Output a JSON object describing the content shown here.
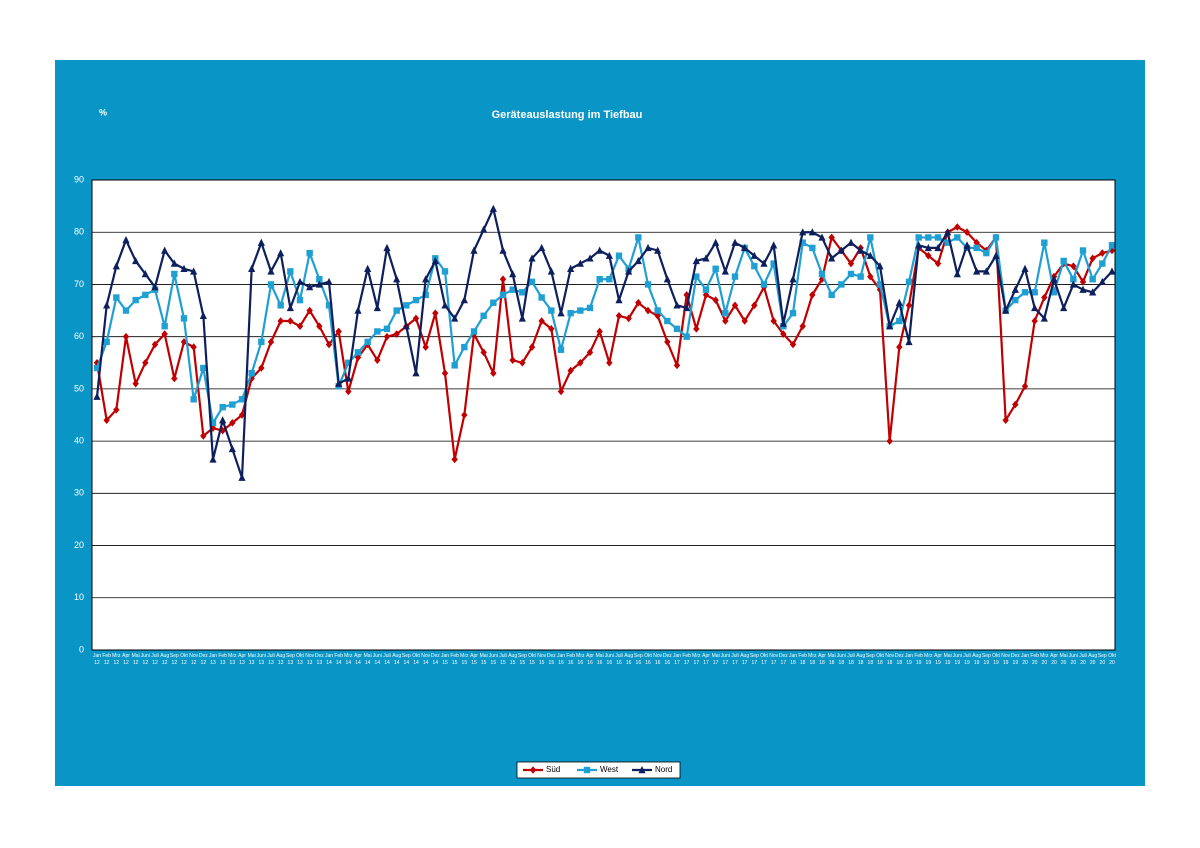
{
  "chart_data": {
    "type": "line",
    "title": "Geräteauslastung im Tiefbau",
    "y_label": "%",
    "categories": [
      "Jan 12",
      "Feb 12",
      "Mrz 12",
      "Apr 12",
      "Mai 12",
      "Juni 12",
      "Juli 12",
      "Aug 12",
      "Sep 12",
      "Okt 12",
      "Nov 12",
      "Dez 12",
      "Jan 13",
      "Feb 13",
      "Mrz 13",
      "Apr 13",
      "Mai 13",
      "Juni 13",
      "Juli 13",
      "Aug 13",
      "Sep 13",
      "Okt 13",
      "Nov 13",
      "Dez 13",
      "Jan 14",
      "Feb 14",
      "Mrz 14",
      "Apr 14",
      "Mai 14",
      "Juni 14",
      "Juli 14",
      "Aug 14",
      "Sep 14",
      "Okt 14",
      "Nov 14",
      "Dez 14",
      "Jan 15",
      "Feb 15",
      "Mrz 15",
      "Apr 15",
      "Mai 15",
      "Juni 15",
      "Juli 15",
      "Aug 15",
      "Sep 15",
      "Okt 15",
      "Nov 15",
      "Dez 15",
      "Jan 16",
      "Feb 16",
      "Mrz 16",
      "Apr 16",
      "Mai 16",
      "Juni 16",
      "Juli 16",
      "Aug 16",
      "Sep 16",
      "Okt 16",
      "Nov 16",
      "Dez 16",
      "Jan 17",
      "Feb 17",
      "Mrz 17",
      "Apr 17",
      "Mai 17",
      "Juni 17",
      "Juli 17",
      "Aug 17",
      "Sep 17",
      "Okt 17",
      "Nov 17",
      "Dez 17",
      "Jan 18",
      "Feb 18",
      "Mrz 18",
      "Apr 18",
      "Mai 18",
      "Juni 18",
      "Juli 18",
      "Aug 18",
      "Sep 18",
      "Okt 18",
      "Nov 18",
      "Dez 18",
      "Jan 19",
      "Feb 19",
      "Mrz 19",
      "Apr 19",
      "Mai 19",
      "Juni 19",
      "Juli 19",
      "Aug 19",
      "Sep 19",
      "Okt 19",
      "Nov 19",
      "Dez 19",
      "Jan 20",
      "Feb 20",
      "Mrz 20",
      "Apr 20",
      "Mai 20",
      "Juni 20",
      "Juli 20",
      "Aug 20",
      "Sep 20",
      "Okt 20"
    ],
    "series": [
      {
        "name": "Süd",
        "color": "#c00000",
        "marker": "diamond",
        "values": [
          55,
          44,
          46,
          60,
          51,
          55,
          58.5,
          60.5,
          52,
          59,
          58,
          41,
          42.5,
          42,
          43.5,
          45,
          52,
          54,
          59,
          63,
          63,
          62,
          65,
          62,
          58.5,
          61,
          49.5,
          56,
          58.5,
          55.5,
          60,
          60.5,
          62,
          63.5,
          58,
          64.5,
          53,
          36.5,
          45,
          60.5,
          57,
          53,
          71,
          55.5,
          55,
          58,
          63,
          61.5,
          49.5,
          53.5,
          55,
          57,
          61,
          55,
          64,
          63.5,
          66.5,
          65,
          64,
          59,
          54.5,
          68,
          61.5,
          68,
          67,
          63,
          66,
          63,
          66,
          69.5,
          63,
          60.5,
          58.5,
          62,
          68,
          71,
          79,
          76.5,
          74,
          77,
          71.5,
          69,
          40,
          58,
          66,
          77,
          75.5,
          74,
          80,
          81,
          80,
          78,
          76.5,
          79,
          44,
          47,
          50.5,
          63,
          67.5,
          71.5,
          74,
          73.5,
          70.5,
          75,
          76,
          76.5
        ]
      },
      {
        "name": "West",
        "color": "#1f9fd2",
        "marker": "square",
        "values": [
          54,
          59,
          67.5,
          65,
          67,
          68,
          69,
          62,
          72,
          63.5,
          48,
          54,
          43.5,
          46.5,
          47,
          48,
          53,
          59,
          70,
          66,
          72.5,
          67,
          76,
          71,
          66,
          50.5,
          55,
          57,
          59,
          61,
          61.5,
          65,
          66,
          67,
          68,
          75,
          72.5,
          54.5,
          58,
          61,
          64,
          66.5,
          68,
          69,
          68.5,
          70.5,
          67.5,
          65,
          57.5,
          64.5,
          65,
          65.5,
          71,
          71,
          75.5,
          73,
          79,
          70,
          65,
          63,
          61.5,
          60,
          71.5,
          69,
          73,
          64.5,
          71.5,
          77,
          73.5,
          70,
          74,
          62,
          64.5,
          78,
          77,
          72,
          68,
          70,
          72,
          71.5,
          79,
          70,
          62,
          63,
          70.5,
          79,
          79,
          79,
          78,
          79,
          77,
          77,
          76,
          79,
          65,
          67,
          68.5,
          68.5,
          78,
          68.5,
          74.5,
          71,
          76.5,
          71,
          74,
          77.5
        ]
      },
      {
        "name": "Nord",
        "color": "#0d1f5c",
        "marker": "triangle",
        "values": [
          48.5,
          66,
          73.5,
          78.5,
          74.5,
          72,
          69.5,
          76.5,
          74,
          73,
          72.5,
          64,
          36.5,
          44,
          38.5,
          33,
          73,
          78,
          72.5,
          76,
          65.5,
          70.5,
          69.5,
          70,
          70.5,
          51,
          52,
          65,
          73,
          65.5,
          77,
          71,
          62,
          53,
          71,
          74.5,
          66,
          63.5,
          67,
          76.5,
          80.5,
          84.5,
          76.5,
          72,
          63.5,
          75,
          77,
          72.5,
          64.5,
          73,
          74,
          75,
          76.5,
          75.5,
          67,
          72.5,
          74.5,
          77,
          76.5,
          71,
          66,
          65.5,
          74.5,
          75,
          78,
          72.5,
          78,
          77,
          75.5,
          74,
          77.5,
          62.5,
          71,
          80,
          80,
          79,
          75,
          76.5,
          78,
          76.5,
          75.5,
          73.5,
          62,
          66.5,
          59,
          77.5,
          77,
          77,
          80,
          72,
          77.5,
          72.5,
          72.5,
          75.5,
          65,
          69,
          73,
          65.5,
          63.5,
          71,
          65.5,
          70,
          69,
          68.5,
          70.5,
          72.5
        ]
      }
    ],
    "ylim": [
      0,
      90
    ],
    "yticks": [
      0,
      10,
      20,
      30,
      40,
      50,
      60,
      70,
      80,
      90
    ],
    "grid": true,
    "legend": "bottom"
  }
}
